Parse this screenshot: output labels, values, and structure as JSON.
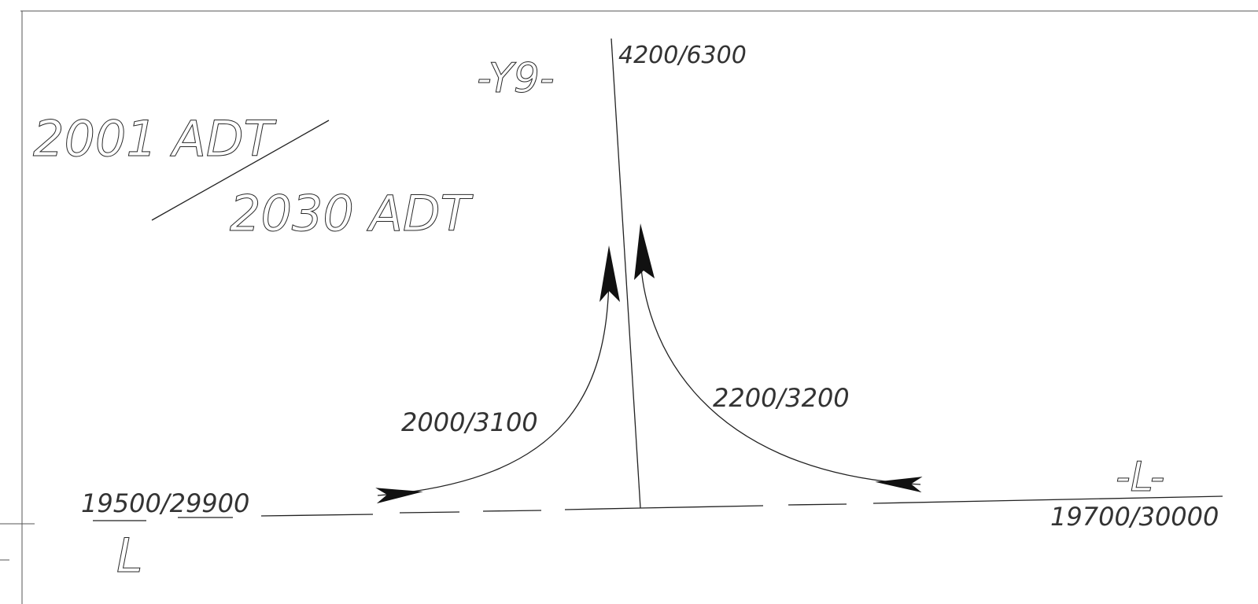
{
  "legend": {
    "top_text": "2001 ADT",
    "bottom_text": "2030  ADT"
  },
  "roads": {
    "side_road_label": "-Y9-",
    "main_road_label_right": "-L-",
    "main_road_label_left": "L"
  },
  "volumes": {
    "side_road": "4200/6300",
    "left_turn_movement": "2000/3100",
    "right_turn_movement": "2200/3200",
    "main_left": "19500/29900",
    "main_right": "19700/30000"
  },
  "colors": {
    "ink": "#222222",
    "background": "#ffffff"
  }
}
